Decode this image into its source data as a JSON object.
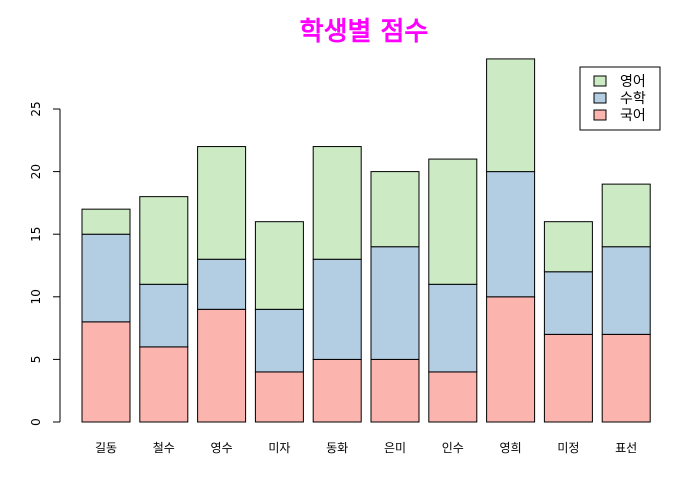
{
  "chart_data": {
    "type": "bar",
    "stacked": true,
    "title": "학생별 점수",
    "title_color": "#ff00ff",
    "categories": [
      "길동",
      "철수",
      "영수",
      "미자",
      "동화",
      "은미",
      "인수",
      "영희",
      "미정",
      "표선"
    ],
    "series": [
      {
        "name": "국어",
        "values": [
          8,
          6,
          9,
          4,
          5,
          5,
          4,
          10,
          7,
          7
        ],
        "color": "#fbb4ae"
      },
      {
        "name": "수학",
        "values": [
          7,
          5,
          4,
          5,
          8,
          9,
          7,
          10,
          5,
          7
        ],
        "color": "#b3cde3"
      },
      {
        "name": "영어",
        "values": [
          2,
          7,
          9,
          7,
          9,
          6,
          10,
          9,
          4,
          5
        ],
        "color": "#ccebc5"
      }
    ],
    "yticks": [
      0,
      5,
      10,
      15,
      20,
      25
    ],
    "ylim": [
      0,
      29
    ],
    "grid": false,
    "legend_position": "top-right"
  }
}
